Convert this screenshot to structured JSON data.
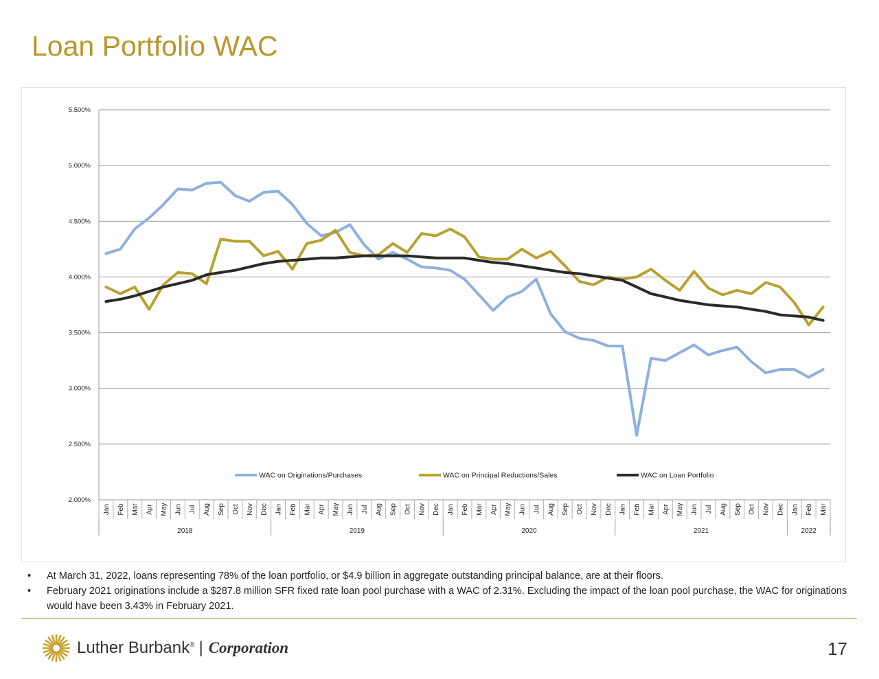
{
  "page": {
    "title": "Loan Portfolio WAC",
    "bullets": [
      "At March 31, 2022, loans representing 78% of the loan portfolio, or $4.9 billion in aggregate outstanding principal balance, are at their floors.",
      "February 2021 originations include a $287.8 million SFR fixed rate loan pool purchase with a WAC of 2.31%.  Excluding the impact of the loan pool purchase, the WAC for originations would have been 3.43% in February 2021."
    ],
    "logo": {
      "name": "Luther Burbank",
      "registered": "®",
      "sep": "|",
      "corp": "Corporation"
    },
    "page_number": "17"
  },
  "chart_data": {
    "type": "line",
    "months": [
      "Jan",
      "Feb",
      "Mar",
      "Apr",
      "May",
      "Jun",
      "Jul",
      "Aug",
      "Sep",
      "Oct",
      "Nov",
      "Dec",
      "Jan",
      "Feb",
      "Mar",
      "Apr",
      "May",
      "Jun",
      "Jul",
      "Aug",
      "Sep",
      "Oct",
      "Nov",
      "Dec",
      "Jan",
      "Feb",
      "Mar",
      "Apr",
      "May",
      "Jun",
      "Jul",
      "Aug",
      "Sep",
      "Oct",
      "Nov",
      "Dec",
      "Jan",
      "Feb",
      "Mar",
      "Apr",
      "May",
      "Jun",
      "Jul",
      "Aug",
      "Sep",
      "Oct",
      "Nov",
      "Dec",
      "Jan",
      "Feb",
      "Mar"
    ],
    "years": [
      {
        "label": "2018",
        "count": 12
      },
      {
        "label": "2019",
        "count": 12
      },
      {
        "label": "2020",
        "count": 12
      },
      {
        "label": "2021",
        "count": 12
      },
      {
        "label": "2022",
        "count": 3
      }
    ],
    "y_ticks": [
      "2.000%",
      "2.500%",
      "3.000%",
      "3.500%",
      "4.000%",
      "4.500%",
      "5.000%",
      "5.500%"
    ],
    "ylim": [
      2.0,
      5.5
    ],
    "legend_position": "inside-bottom",
    "grid": true,
    "series": [
      {
        "name": "WAC on Originations/Purchases",
        "color": "#8eb0df",
        "values": [
          4.21,
          4.25,
          4.43,
          4.53,
          4.65,
          4.79,
          4.78,
          4.84,
          4.85,
          4.73,
          4.68,
          4.76,
          4.77,
          4.65,
          4.48,
          4.37,
          4.4,
          4.47,
          4.29,
          4.16,
          4.22,
          4.16,
          4.09,
          4.08,
          4.06,
          3.98,
          3.84,
          3.7,
          3.82,
          3.87,
          3.98,
          3.67,
          3.51,
          3.45,
          3.43,
          3.38,
          3.38,
          2.58,
          3.27,
          3.25,
          3.32,
          3.39,
          3.3,
          3.34,
          3.37,
          3.24,
          3.14,
          3.17,
          3.17,
          3.1,
          3.17
        ]
      },
      {
        "name": "WAC on Principal Reductions/Sales",
        "color": "#b8a132",
        "values": [
          3.91,
          3.85,
          3.91,
          3.71,
          3.93,
          4.04,
          4.03,
          3.94,
          4.34,
          4.32,
          4.32,
          4.19,
          4.23,
          4.07,
          4.3,
          4.33,
          4.42,
          4.22,
          4.19,
          4.2,
          4.3,
          4.22,
          4.39,
          4.37,
          4.43,
          4.36,
          4.18,
          4.16,
          4.16,
          4.25,
          4.17,
          4.23,
          4.1,
          3.96,
          3.93,
          4.0,
          3.98,
          4.0,
          4.07,
          3.97,
          3.88,
          4.05,
          3.9,
          3.84,
          3.88,
          3.85,
          3.95,
          3.91,
          3.77,
          3.57,
          3.73
        ]
      },
      {
        "name": "WAC on Loan Portfolio",
        "color": "#2b2a27",
        "values": [
          3.78,
          3.8,
          3.83,
          3.87,
          3.91,
          3.94,
          3.97,
          4.02,
          4.04,
          4.06,
          4.09,
          4.12,
          4.14,
          4.15,
          4.16,
          4.17,
          4.17,
          4.18,
          4.19,
          4.19,
          4.19,
          4.19,
          4.18,
          4.17,
          4.17,
          4.17,
          4.15,
          4.13,
          4.12,
          4.1,
          4.08,
          4.06,
          4.04,
          4.03,
          4.01,
          3.99,
          3.97,
          3.91,
          3.85,
          3.82,
          3.79,
          3.77,
          3.75,
          3.74,
          3.73,
          3.71,
          3.69,
          3.66,
          3.65,
          3.64,
          3.61
        ]
      }
    ]
  }
}
